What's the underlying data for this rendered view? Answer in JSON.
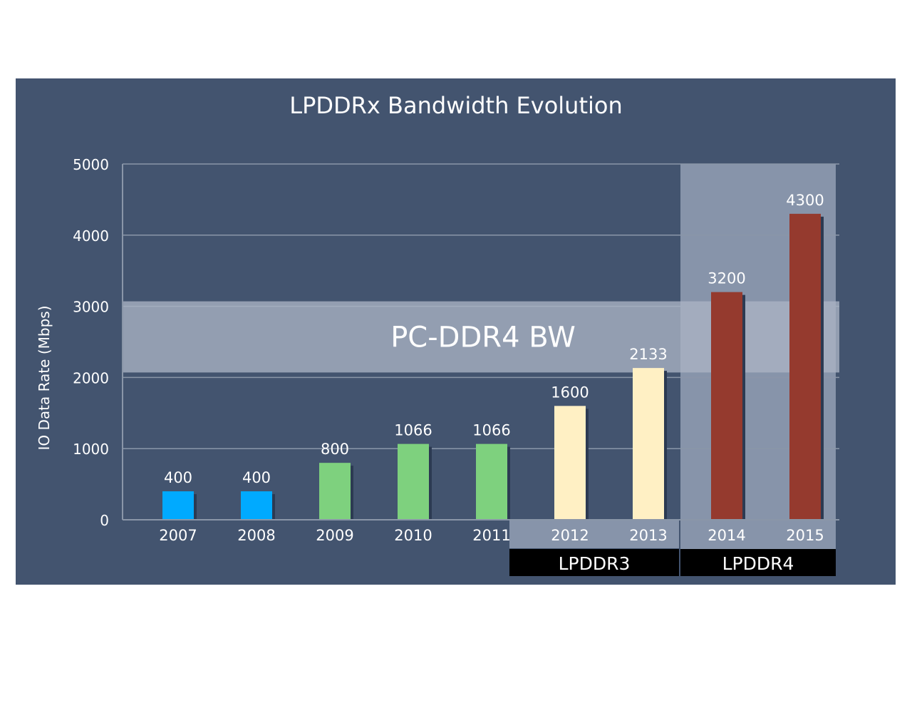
{
  "colors": {
    "background": "#43546f",
    "page": "#ffffff",
    "text": "#ffffff",
    "gridline": "#8a96a8",
    "band": "#aab3c4",
    "highlight": "#8794aa",
    "group_label_bg": "#000000",
    "shadow": "#2c3a52"
  },
  "chart_data": {
    "type": "bar",
    "title": "LPDDRx Bandwidth Evolution",
    "xlabel": "",
    "ylabel": "IO Data Rate (Mbps)",
    "ylim": [
      0,
      5000
    ],
    "yticks": [
      0,
      1000,
      2000,
      3000,
      4000,
      5000
    ],
    "grid": true,
    "legend": "none",
    "categories": [
      "2007",
      "2008",
      "2009",
      "2010",
      "2011",
      "2012",
      "2013",
      "2014",
      "2015"
    ],
    "values": [
      400,
      400,
      800,
      1066,
      1066,
      1600,
      2133,
      3200,
      4300
    ],
    "bar_colors": [
      "#00aaff",
      "#00aaff",
      "#7ed17e",
      "#7ed17e",
      "#7ed17e",
      "#fff0c4",
      "#fff0c4",
      "#953a2e",
      "#953a2e"
    ],
    "band": {
      "label": "PC-DDR4 BW",
      "from": 2070,
      "to": 3070
    },
    "groups": [
      {
        "label": "LPDDR3",
        "from": "2012",
        "to": "2013",
        "highlight_full": false
      },
      {
        "label": "LPDDR4",
        "from": "2014",
        "to": "2015",
        "highlight_full": true
      }
    ]
  }
}
